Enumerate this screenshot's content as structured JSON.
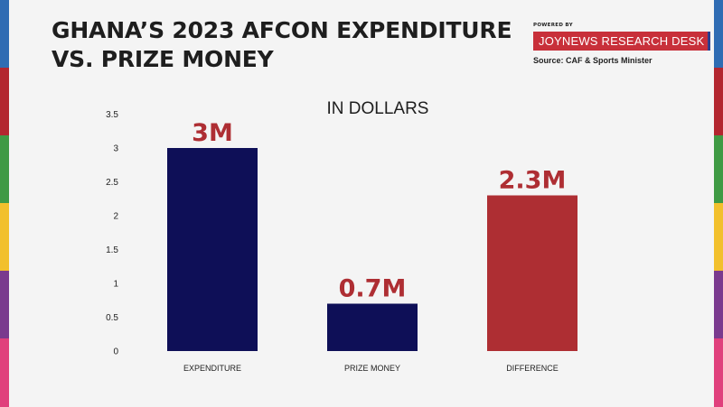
{
  "header": {
    "title_line1": "GHANA’S 2023 AFCON EXPENDITURE",
    "title_line2": "VS. PRIZE MONEY",
    "powered_by": "POWERED BY",
    "brand": "JOYNEWS RESEARCH DESK",
    "source": "Source: CAF & Sports Minister"
  },
  "colors": {
    "expenditure": "#0e0f57",
    "prize_money": "#0e0f57",
    "difference": "#ae2e33",
    "label_red": "#ae2e33",
    "edge_stripes": [
      "#2f6cb3",
      "#b3262f",
      "#3f9a44",
      "#f2c02c",
      "#7a3a8e",
      "#e0407c"
    ]
  },
  "chart_data": {
    "type": "bar",
    "title": "IN DOLLARS",
    "categories": [
      "EXPENDITURE",
      "PRIZE MONEY",
      "DIFFERENCE"
    ],
    "values": [
      3,
      0.7,
      2.3
    ],
    "data_labels": [
      "3M",
      "0.7M",
      "2.3M"
    ],
    "yticks": [
      "0",
      "0.5",
      "1",
      "1.5",
      "2",
      "2.5",
      "3",
      "3.5"
    ],
    "ylim": [
      0,
      3.5
    ],
    "grid": false,
    "legend": "none"
  }
}
